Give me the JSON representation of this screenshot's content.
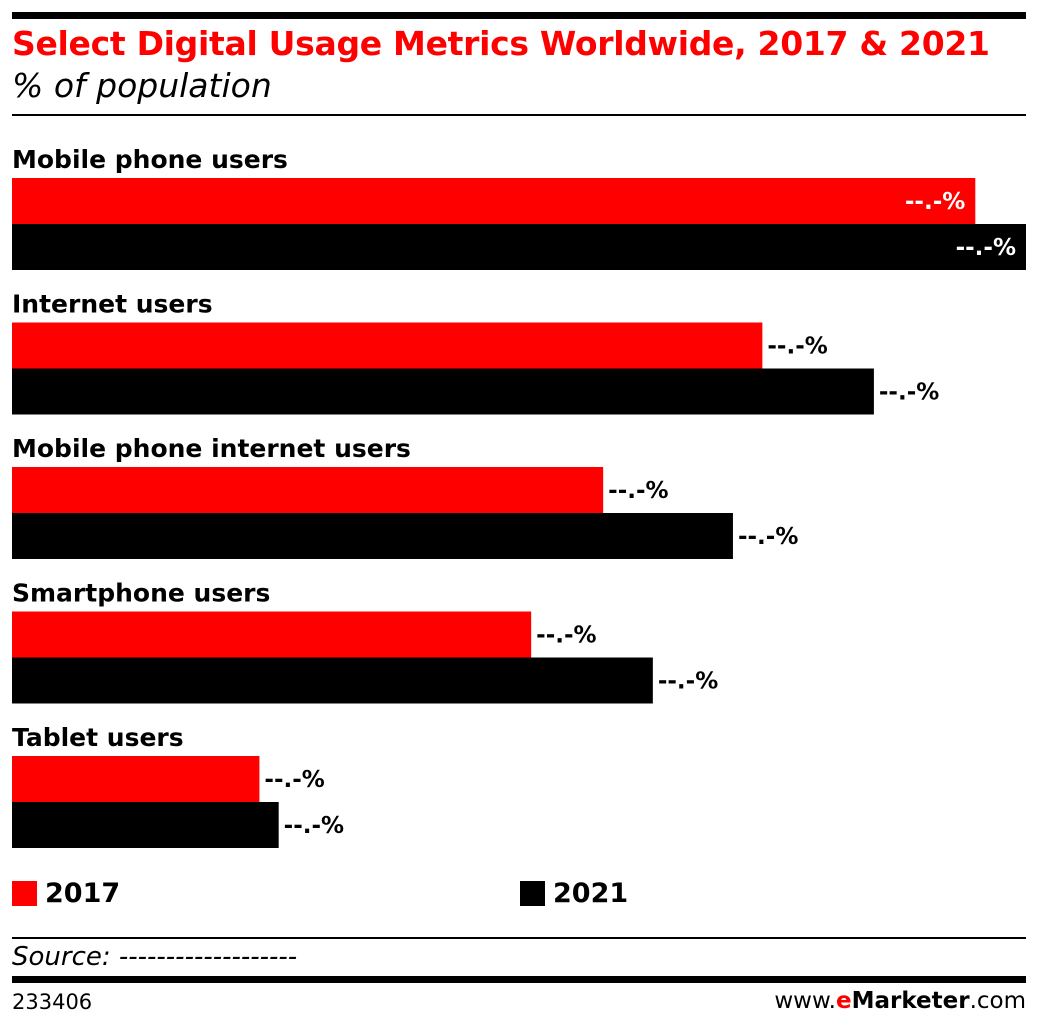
{
  "header": {
    "title": "Select Digital Usage Metrics Worldwide, 2017 & 2021",
    "subtitle": "% of population"
  },
  "chart_data": {
    "type": "bar",
    "orientation": "horizontal",
    "categories": [
      "Mobile phone users",
      "Internet users",
      "Mobile phone internet users",
      "Smartphone users",
      "Tablet users"
    ],
    "series": [
      {
        "name": "2017",
        "color": "#ff0000",
        "values": [
          95,
          74,
          58.3,
          51.2,
          24.4
        ],
        "labels": [
          "--.-%",
          "--.-%",
          "--.-%",
          "--.-%",
          "--.-%"
        ]
      },
      {
        "name": "2021",
        "color": "#000000",
        "values": [
          100,
          85,
          71.1,
          63.2,
          26.3
        ],
        "labels": [
          "--.-%",
          "--.-%",
          "--.-%",
          "--.-%",
          "--.-%"
        ]
      }
    ],
    "xlim": [
      0,
      100
    ],
    "grid": false,
    "legend_position": "bottom"
  },
  "legend": {
    "items": [
      {
        "label": "2017",
        "color": "#ff0000"
      },
      {
        "label": "2021",
        "color": "#000000"
      }
    ]
  },
  "footer": {
    "source": "Source: -------------------",
    "chart_id": "233406",
    "brand_prefix": "www.",
    "brand_e": "e",
    "brand_name": "Marketer",
    "brand_suffix": ".com"
  }
}
